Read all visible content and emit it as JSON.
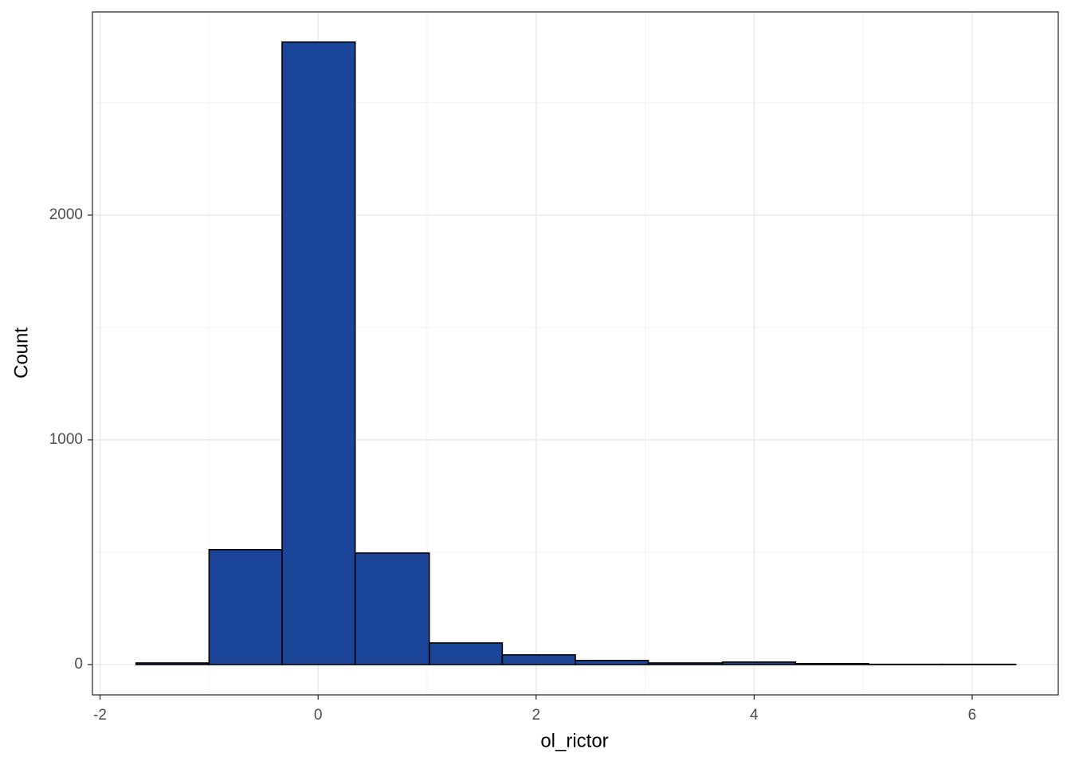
{
  "chart_data": {
    "type": "histogram",
    "x_label": "ol_rictor",
    "y_label": "Count",
    "bins": [
      -1.67,
      -1.0,
      -0.33,
      0.34,
      1.02,
      1.69,
      2.36,
      3.03,
      3.71,
      4.38,
      5.05,
      5.72,
      6.4
    ],
    "values": [
      7,
      511,
      2770,
      496,
      96,
      43,
      18,
      7,
      11,
      4,
      1,
      1
    ],
    "color": "#1a4599",
    "edge_color": "#000000",
    "xlim": [
      -2.07,
      6.79
    ],
    "xticks": [
      -2,
      0,
      2,
      4,
      6
    ],
    "ylim": [
      -135,
      2904
    ],
    "yticks": [
      0,
      1000,
      2000
    ],
    "x_minor_grid": [
      -1,
      1,
      3,
      5
    ],
    "y_minor_grid": [
      500,
      1500,
      2500
    ],
    "grid": true
  }
}
